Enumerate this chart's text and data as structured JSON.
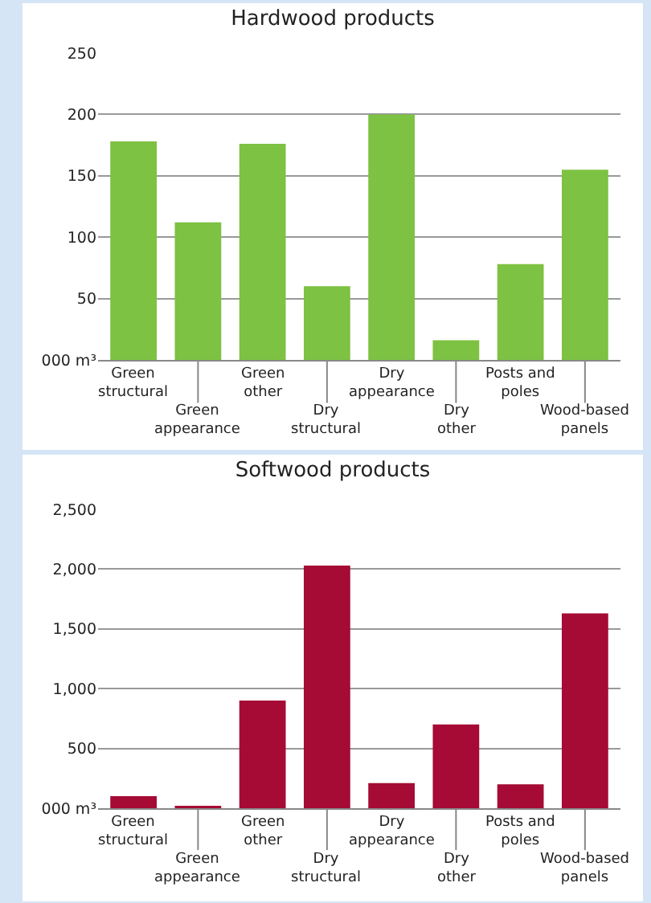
{
  "chart_data": [
    {
      "type": "bar",
      "title": "Hardwood products",
      "categories": [
        "Green structural",
        "Green appearance",
        "Green other",
        "Dry structural",
        "Dry appearance",
        "Dry other",
        "Posts and poles",
        "Wood-based panels"
      ],
      "values": [
        178,
        112,
        176,
        60,
        200,
        16,
        78,
        155
      ],
      "color": "#7dc242",
      "ylim": [
        0,
        250
      ],
      "yticks": [
        {
          "value": 0,
          "label": "000 m³"
        },
        50,
        100,
        150,
        200,
        250
      ],
      "grid": "y"
    },
    {
      "type": "bar",
      "title": "Softwood products",
      "categories": [
        "Green structural",
        "Green appearance",
        "Green other",
        "Dry structural",
        "Dry appearance",
        "Dry other",
        "Posts and poles",
        "Wood-based panels"
      ],
      "values": [
        100,
        20,
        900,
        2030,
        210,
        700,
        200,
        1630
      ],
      "color": "#a50b34",
      "ylim": [
        0,
        2500
      ],
      "yticks": [
        {
          "value": 0,
          "label": "000 m³"
        },
        {
          "value": 500,
          "label": "500"
        },
        {
          "value": 1000,
          "label": "1,000"
        },
        {
          "value": 1500,
          "label": "1,500"
        },
        {
          "value": 2000,
          "label": "2,000"
        },
        {
          "value": 2500,
          "label": "2,500"
        }
      ],
      "grid": "y"
    }
  ]
}
